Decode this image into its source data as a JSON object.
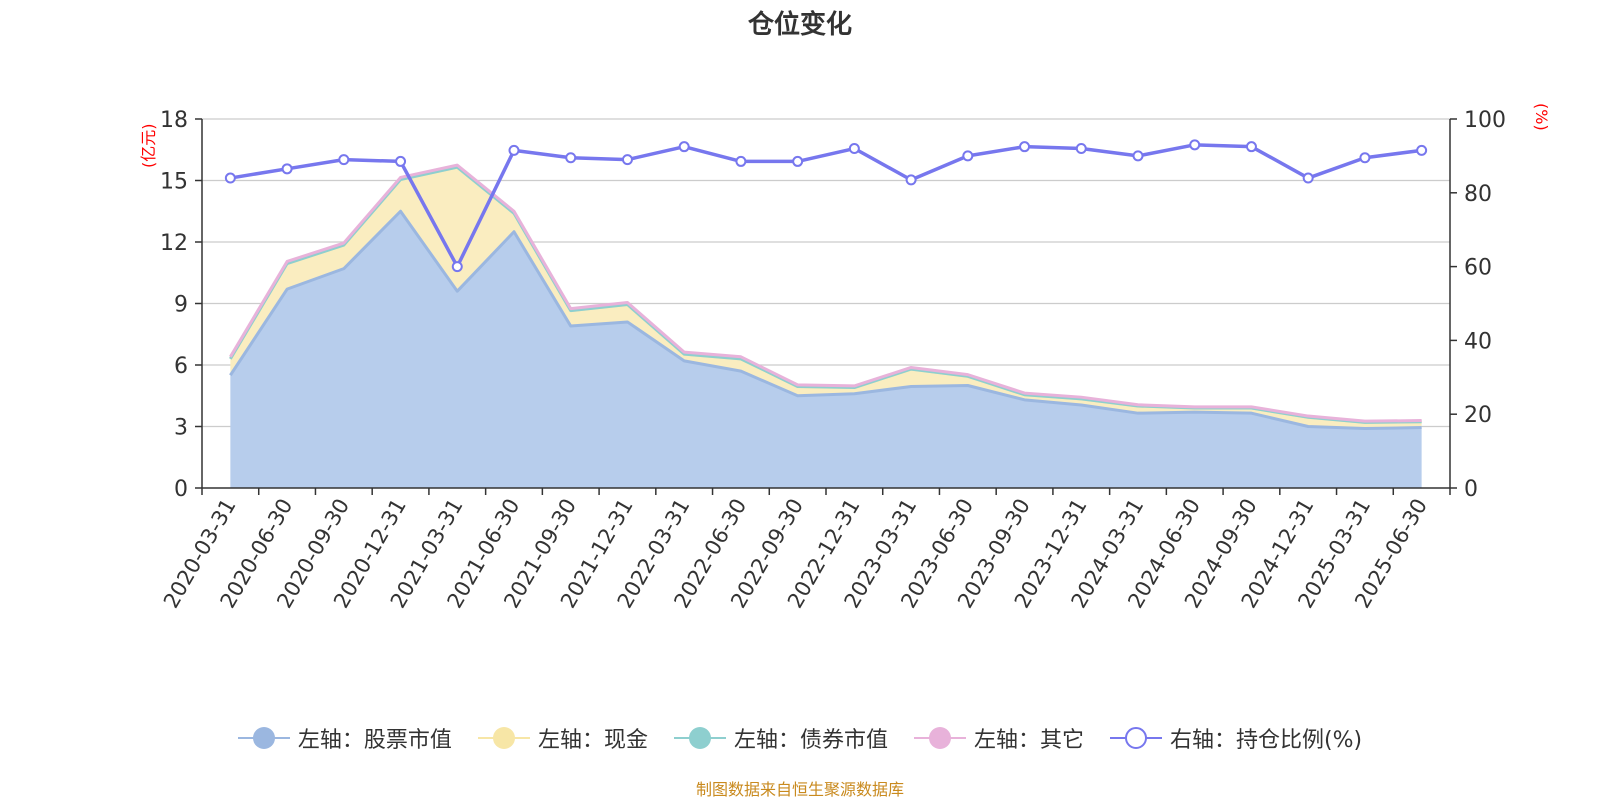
{
  "chart_data": {
    "type": "area",
    "title": "仓位变化",
    "y_left_unit": "(亿元)",
    "y_right_unit": "(%)",
    "ylim_left": [
      0,
      18
    ],
    "ylim_right": [
      0,
      100
    ],
    "y_left_ticks": [
      0,
      3,
      6,
      9,
      12,
      15,
      18
    ],
    "y_right_ticks": [
      0,
      20,
      40,
      60,
      80,
      100
    ],
    "grid": true,
    "legend_position": "bottom",
    "categories": [
      "2020-03-31",
      "2020-06-30",
      "2020-09-30",
      "2020-12-31",
      "2021-03-31",
      "2021-06-30",
      "2021-09-30",
      "2021-12-31",
      "2022-03-31",
      "2022-06-30",
      "2022-09-30",
      "2022-12-31",
      "2023-03-31",
      "2023-06-30",
      "2023-09-30",
      "2023-12-31",
      "2024-03-31",
      "2024-06-30",
      "2024-09-30",
      "2024-12-31",
      "2025-03-31",
      "2025-06-30"
    ],
    "series": [
      {
        "name": "左轴：股票市值",
        "axis": "left",
        "stacked": true,
        "color": "#9bb7e0",
        "fill": "#b7cdec",
        "values": [
          5.5,
          9.7,
          10.7,
          13.5,
          9.6,
          12.5,
          7.9,
          8.1,
          6.2,
          5.7,
          4.5,
          4.6,
          4.95,
          5.0,
          4.3,
          4.05,
          3.65,
          3.7,
          3.65,
          3.0,
          2.9,
          2.95
        ]
      },
      {
        "name": "左轴：现金",
        "axis": "left",
        "stacked": true,
        "color": "#f7e6a6",
        "fill": "#faedc0",
        "values": [
          0.8,
          1.25,
          1.15,
          1.55,
          6.05,
          0.9,
          0.75,
          0.85,
          0.33,
          0.6,
          0.45,
          0.3,
          0.85,
          0.45,
          0.25,
          0.3,
          0.35,
          0.2,
          0.25,
          0.45,
          0.3,
          0.28
        ]
      },
      {
        "name": "左轴：债券市值",
        "axis": "left",
        "stacked": true,
        "color": "#8ecfcf",
        "fill": "#b6e0e0",
        "values": [
          0,
          0,
          0,
          0,
          0,
          0,
          0,
          0,
          0,
          0,
          0,
          0,
          0,
          0,
          0,
          0,
          0,
          0,
          0,
          0,
          0,
          0
        ]
      },
      {
        "name": "左轴：其它",
        "axis": "left",
        "stacked": true,
        "color": "#e8b2da",
        "fill": "#f0cce6",
        "values": [
          0.1,
          0.1,
          0.1,
          0.1,
          0.1,
          0.1,
          0.1,
          0.1,
          0.1,
          0.1,
          0.08,
          0.08,
          0.08,
          0.08,
          0.08,
          0.08,
          0.06,
          0.06,
          0.06,
          0.06,
          0.06,
          0.06
        ]
      },
      {
        "name": "右轴：持仓比例(%)",
        "axis": "right",
        "type": "line",
        "color": "#7777ee",
        "values": [
          84,
          86.5,
          89,
          88.5,
          60,
          91.5,
          89.5,
          89,
          92.5,
          88.5,
          88.5,
          92,
          83.5,
          90,
          92.5,
          92,
          90,
          93,
          92.5,
          84,
          89.5,
          91.5
        ]
      }
    ]
  },
  "source_note": "制图数据来自恒生聚源数据库"
}
